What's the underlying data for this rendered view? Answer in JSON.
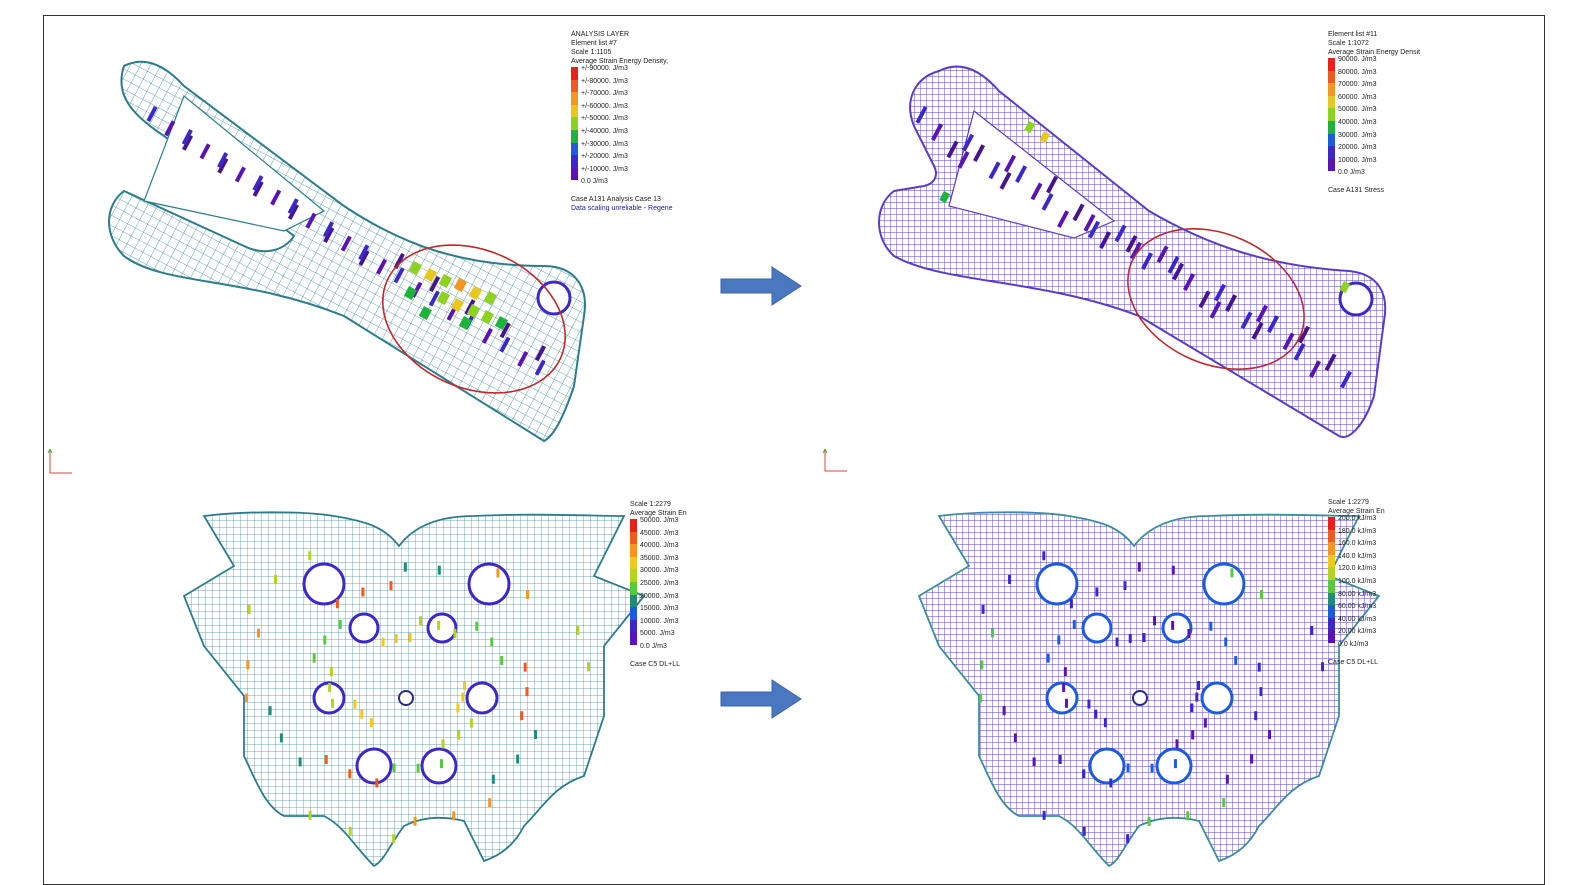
{
  "panels": {
    "top_left": {
      "legend": {
        "header": [
          "ANALYSIS LAYER",
          "Element list #7",
          "Scale 1:1105",
          "Average Strain Energy Density,"
        ],
        "items": [
          "+/-90000. J/m3",
          "+/-80000. J/m3",
          "+/-70000. J/m3",
          "+/-60000. J/m3",
          "+/-50000. J/m3",
          "+/-40000. J/m3",
          "+/-30000. J/m3",
          "+/-20000. J/m3",
          "+/-10000. J/m3",
          "0.0 J/m3"
        ],
        "footer": "Case A131 Analysis Case 13",
        "warning": "Data scaling unreliable - Regene"
      }
    },
    "top_right": {
      "legend": {
        "header": [
          "Element list #11",
          "Scale 1:1072",
          "Average Strain Energy Densit"
        ],
        "items": [
          "90000. J/m3",
          "80000. J/m3",
          "70000. J/m3",
          "60000. J/m3",
          "50000. J/m3",
          "40000. J/m3",
          "30000. J/m3",
          "20000. J/m3",
          "10000. J/m3",
          "0.0 J/m3"
        ],
        "footer": "Case A131 Stress"
      }
    },
    "bottom_left": {
      "legend": {
        "header": [
          "Scale 1:2279",
          "Average Strain En"
        ],
        "items": [
          "50000. J/m3",
          "45000. J/m3",
          "40000. J/m3",
          "35000. J/m3",
          "30000. J/m3",
          "25000. J/m3",
          "20000. J/m3",
          "15000. J/m3",
          "10000. J/m3",
          "5000. J/m3",
          "0.0 J/m3"
        ],
        "footer": "Case C5 DL+LL"
      }
    },
    "bottom_right": {
      "legend": {
        "header": [
          "Scale 1:2279",
          "Average Strain En"
        ],
        "items": [
          "200.0 kJ/m3",
          "180.0 kJ/m3",
          "160.0 kJ/m3",
          "140.0 kJ/m3",
          "120.0 kJ/m3",
          "100.0 kJ/m3",
          "80.00 kJ/m3",
          "60.00 kJ/m3",
          "40.00 kJ/m3",
          "20.00 kJ/m3",
          "0.0 kJ/m3"
        ],
        "footer": "Case C5 DL+LL"
      }
    }
  },
  "colors": {
    "scale_10": [
      "#e8211b",
      "#f05a1e",
      "#f5961e",
      "#e8c81e",
      "#8cd21e",
      "#1eb43c",
      "#1e5adc",
      "#3c28c8",
      "#5a14b4",
      "#46148c"
    ],
    "scale_11": [
      "#e8211b",
      "#f05a1e",
      "#f5961e",
      "#f0c81e",
      "#b4d21e",
      "#5ac83c",
      "#1e8c78",
      "#1e5adc",
      "#3c28c8",
      "#5a14b4",
      "#46148c"
    ],
    "mesh": "#3c8c9c",
    "highlight_ellipse": "#c0282a",
    "arrow": "#4a78c0"
  }
}
